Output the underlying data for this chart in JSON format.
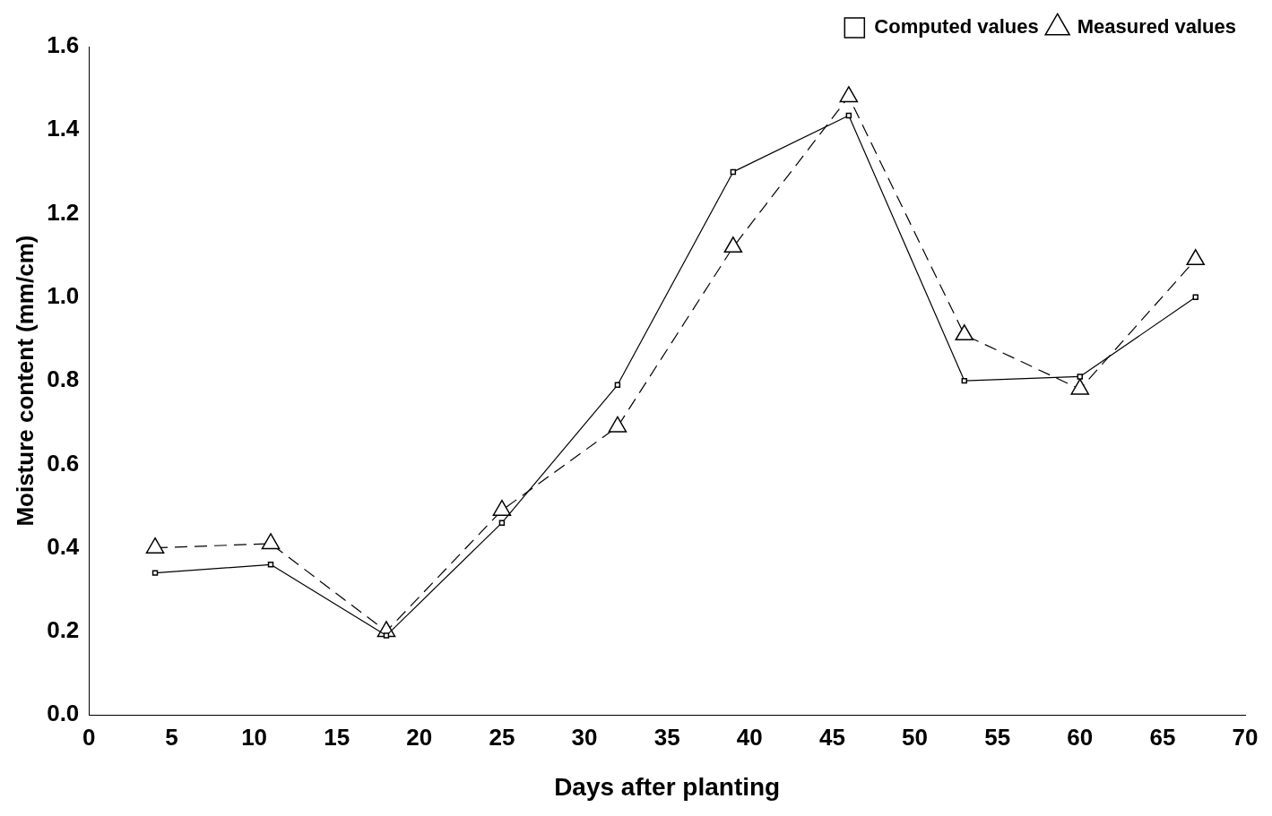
{
  "chart_data": {
    "type": "line",
    "xlabel": "Days after planting",
    "ylabel": "Moisture content (mm/cm)",
    "x": [
      4,
      11,
      18,
      25,
      32,
      39,
      46,
      53,
      60,
      67
    ],
    "series": [
      {
        "name": "Computed values",
        "color": "#000000",
        "marker": "square",
        "line_style": "solid",
        "values": [
          0.34,
          0.36,
          0.19,
          0.46,
          0.79,
          1.3,
          1.435,
          0.8,
          0.81,
          1.0
        ]
      },
      {
        "name": "Measured values",
        "color": "#000000",
        "marker": "triangle",
        "line_style": "dashed",
        "values": [
          0.4,
          0.41,
          0.2,
          0.49,
          0.69,
          1.12,
          1.48,
          0.91,
          0.78,
          1.09
        ]
      }
    ],
    "xlim": [
      0,
      70
    ],
    "xticks": [
      0,
      5,
      10,
      15,
      20,
      25,
      30,
      35,
      40,
      45,
      50,
      55,
      60,
      65,
      70
    ],
    "ylim": [
      0,
      1.6
    ],
    "yticks": [
      {
        "value": 0,
        "label": "0.0"
      },
      0.2,
      0.4,
      0.6,
      0.8,
      {
        "value": 1,
        "label": "1.0"
      },
      1.2,
      1.4,
      1.6
    ],
    "grid": false,
    "legend": "top right"
  }
}
